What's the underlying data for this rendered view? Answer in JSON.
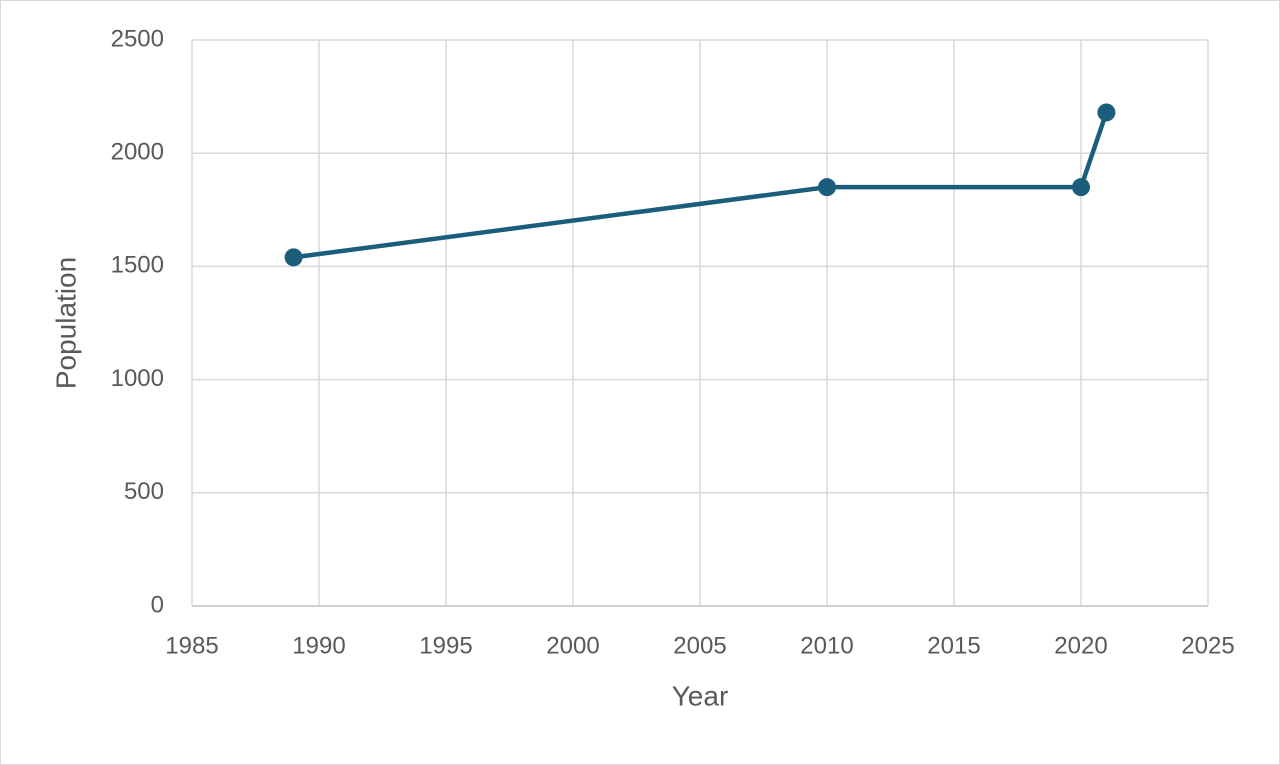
{
  "chart_data": {
    "type": "line",
    "x_label": "Year",
    "y_label": "Population",
    "x": [
      1989,
      2010,
      2020,
      2021
    ],
    "values": [
      1540,
      1850,
      1850,
      2180
    ],
    "color": "#1b5e7b",
    "xlim": [
      1985,
      2025
    ],
    "xticks": [
      1985,
      1990,
      1995,
      2000,
      2005,
      2010,
      2015,
      2020,
      2025
    ],
    "ylim": [
      0,
      2500
    ],
    "yticks": [
      0,
      500,
      1000,
      1500,
      2000,
      2500
    ],
    "grid": true,
    "markers": true
  }
}
